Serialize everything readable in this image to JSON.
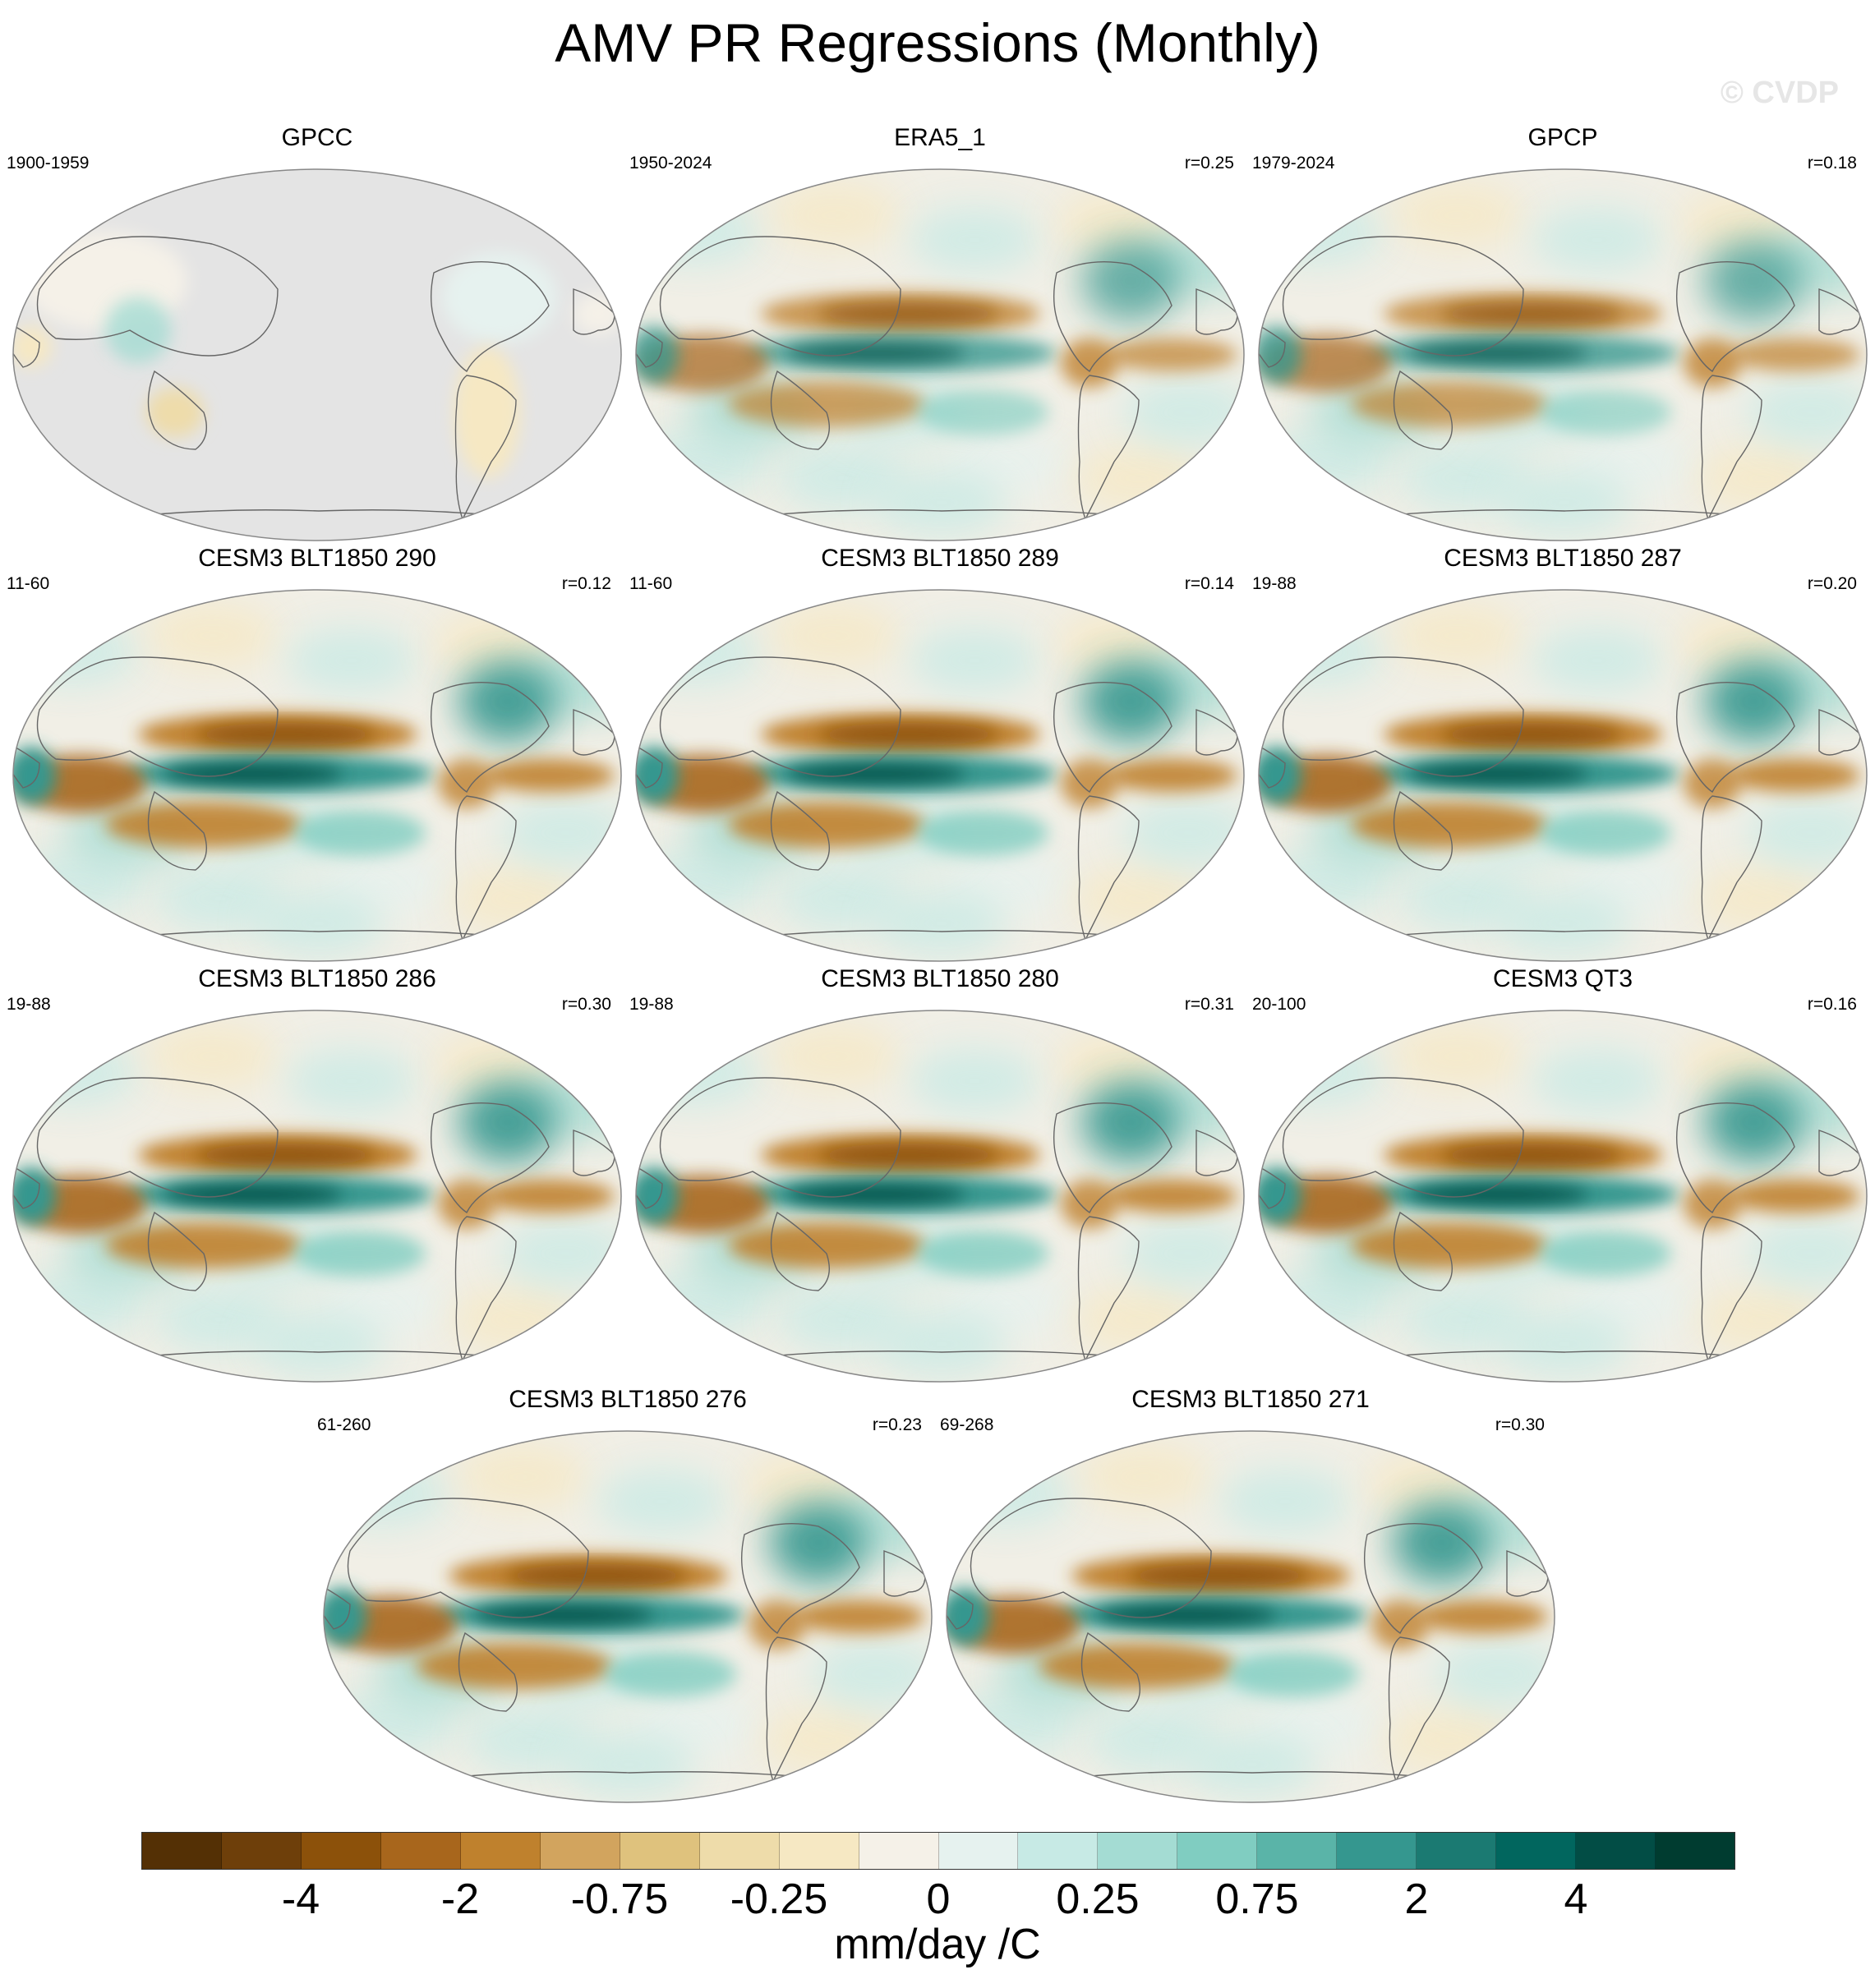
{
  "title": "AMV PR Regressions (Monthly)",
  "watermark": "© CVDP",
  "panels": [
    {
      "title": "GPCC",
      "years": "1900-1959",
      "r": "",
      "style": "land"
    },
    {
      "title": "ERA5_1",
      "years": "1950-2024",
      "r": "r=0.25",
      "style": "obs"
    },
    {
      "title": "GPCP",
      "years": "1979-2024",
      "r": "r=0.18",
      "style": "obs"
    },
    {
      "title": "CESM3 BLT1850 290",
      "years": "11-60",
      "r": "r=0.12",
      "style": "model"
    },
    {
      "title": "CESM3 BLT1850 289",
      "years": "11-60",
      "r": "r=0.14",
      "style": "model"
    },
    {
      "title": "CESM3 BLT1850 287",
      "years": "19-88",
      "r": "r=0.20",
      "style": "model"
    },
    {
      "title": "CESM3 BLT1850 286",
      "years": "19-88",
      "r": "r=0.30",
      "style": "model"
    },
    {
      "title": "CESM3 BLT1850 280",
      "years": "19-88",
      "r": "r=0.31",
      "style": "model"
    },
    {
      "title": "CESM3 QT3",
      "years": "20-100",
      "r": "r=0.16",
      "style": "model"
    },
    {
      "title": "CESM3 BLT1850 276",
      "years": "61-260",
      "r": "r=0.23",
      "style": "model"
    },
    {
      "title": "CESM3 BLT1850 271",
      "years": "69-268",
      "r": "r=0.30",
      "style": "model"
    }
  ],
  "colorbar": {
    "colors": [
      "#543005",
      "#6e3f0a",
      "#8c510a",
      "#a8661c",
      "#bf812d",
      "#d2a45e",
      "#dfc27d",
      "#eedcaa",
      "#f6e8c3",
      "#f5f1e8",
      "#e6f2ef",
      "#c7eae5",
      "#a4dcd3",
      "#80cdc1",
      "#5ab4a8",
      "#35978f",
      "#1b7a72",
      "#01665e",
      "#024d45",
      "#003c30"
    ],
    "tick_labels": [
      "-4",
      "-2",
      "-0.75",
      "-0.25",
      "0",
      "0.25",
      "0.75",
      "2",
      "4"
    ],
    "units": "mm/day /C"
  }
}
